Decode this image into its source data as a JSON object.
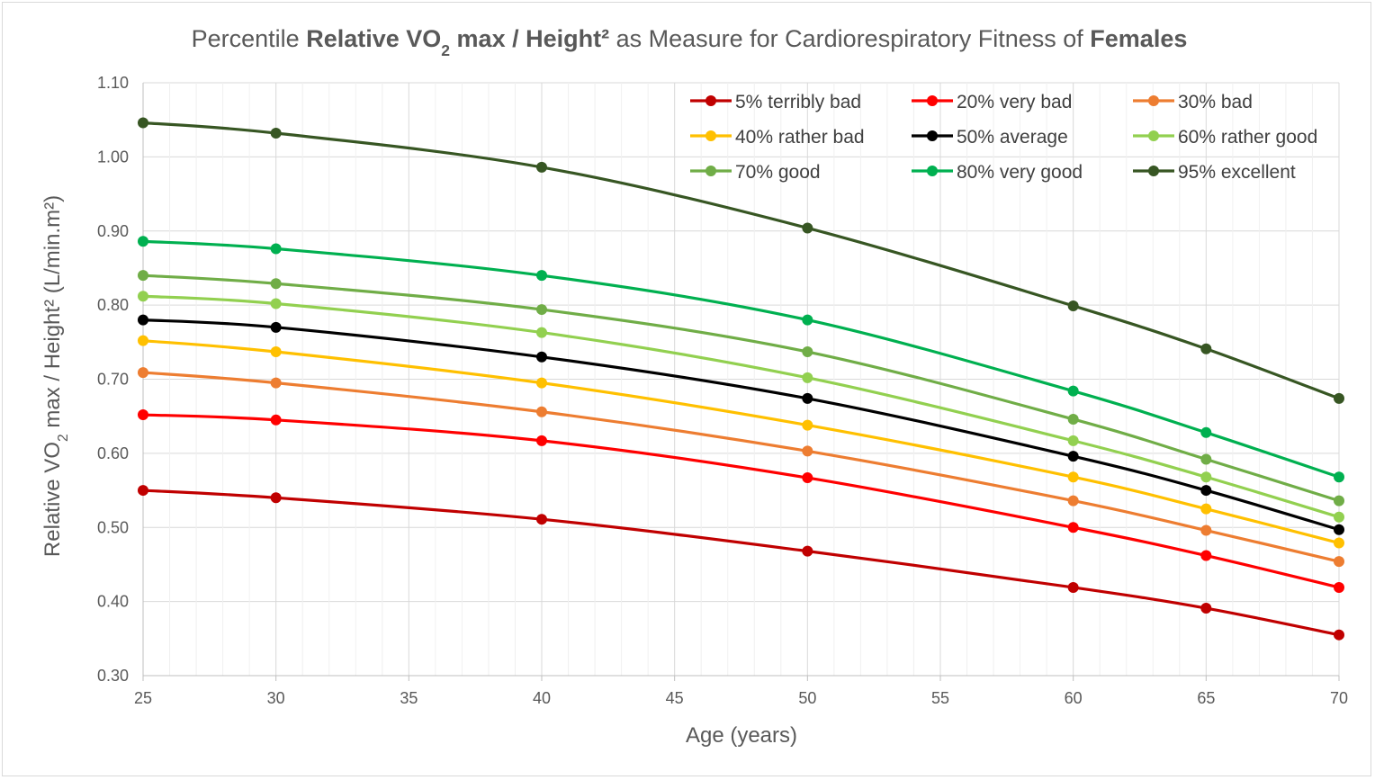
{
  "chart_data": {
    "type": "line",
    "title": {
      "parts": [
        {
          "text": "Percentile ",
          "bold": false
        },
        {
          "text": "Relative VO",
          "bold": true
        },
        {
          "text": "2",
          "bold": true,
          "sub": true
        },
        {
          "text": " max / Height²",
          "bold": true
        },
        {
          "text": " as Measure for Cardiorespiratory Fitness of ",
          "bold": false
        },
        {
          "text": "Females",
          "bold": true
        }
      ]
    },
    "xlabel": "Age (years)",
    "ylabel": {
      "parts": [
        {
          "text": "Relative VO"
        },
        {
          "text": "2",
          "sub": true
        },
        {
          "text": " max / Height² (L/min.m²)"
        }
      ]
    },
    "xlim": [
      25,
      70
    ],
    "ylim": [
      0.3,
      1.1
    ],
    "x_ticks": [
      "25",
      "30",
      "35",
      "40",
      "45",
      "50",
      "55",
      "60",
      "65",
      "70"
    ],
    "y_ticks": [
      "0.30",
      "0.40",
      "0.50",
      "0.60",
      "0.70",
      "0.80",
      "0.90",
      "1.00",
      "1.10"
    ],
    "grid": true,
    "legend_position": "top-right",
    "x": [
      25,
      30,
      40,
      50,
      60,
      65,
      70
    ],
    "series": [
      {
        "name": "5% terribly bad",
        "color": "#c00000",
        "values": [
          0.55,
          0.54,
          0.511,
          0.468,
          0.419,
          0.391,
          0.355
        ]
      },
      {
        "name": "20% very bad",
        "color": "#ff0000",
        "values": [
          0.652,
          0.645,
          0.617,
          0.567,
          0.5,
          0.462,
          0.419
        ]
      },
      {
        "name": "30% bad",
        "color": "#ed7d31",
        "values": [
          0.709,
          0.695,
          0.656,
          0.603,
          0.536,
          0.496,
          0.454
        ]
      },
      {
        "name": "40% rather bad",
        "color": "#ffc000",
        "values": [
          0.752,
          0.737,
          0.695,
          0.638,
          0.568,
          0.525,
          0.479
        ]
      },
      {
        "name": "50% average",
        "color": "#000000",
        "values": [
          0.78,
          0.77,
          0.73,
          0.674,
          0.596,
          0.55,
          0.497
        ]
      },
      {
        "name": "60% rather good",
        "color": "#92d050",
        "values": [
          0.812,
          0.802,
          0.763,
          0.702,
          0.617,
          0.568,
          0.514
        ]
      },
      {
        "name": "70% good",
        "color": "#70ad47",
        "values": [
          0.84,
          0.829,
          0.794,
          0.737,
          0.646,
          0.592,
          0.536
        ]
      },
      {
        "name": "80% very good",
        "color": "#00b050",
        "values": [
          0.886,
          0.876,
          0.84,
          0.78,
          0.684,
          0.628,
          0.568
        ]
      },
      {
        "name": "95% excellent",
        "color": "#375623",
        "values": [
          1.046,
          1.032,
          0.986,
          0.904,
          0.799,
          0.741,
          0.674
        ]
      }
    ]
  }
}
